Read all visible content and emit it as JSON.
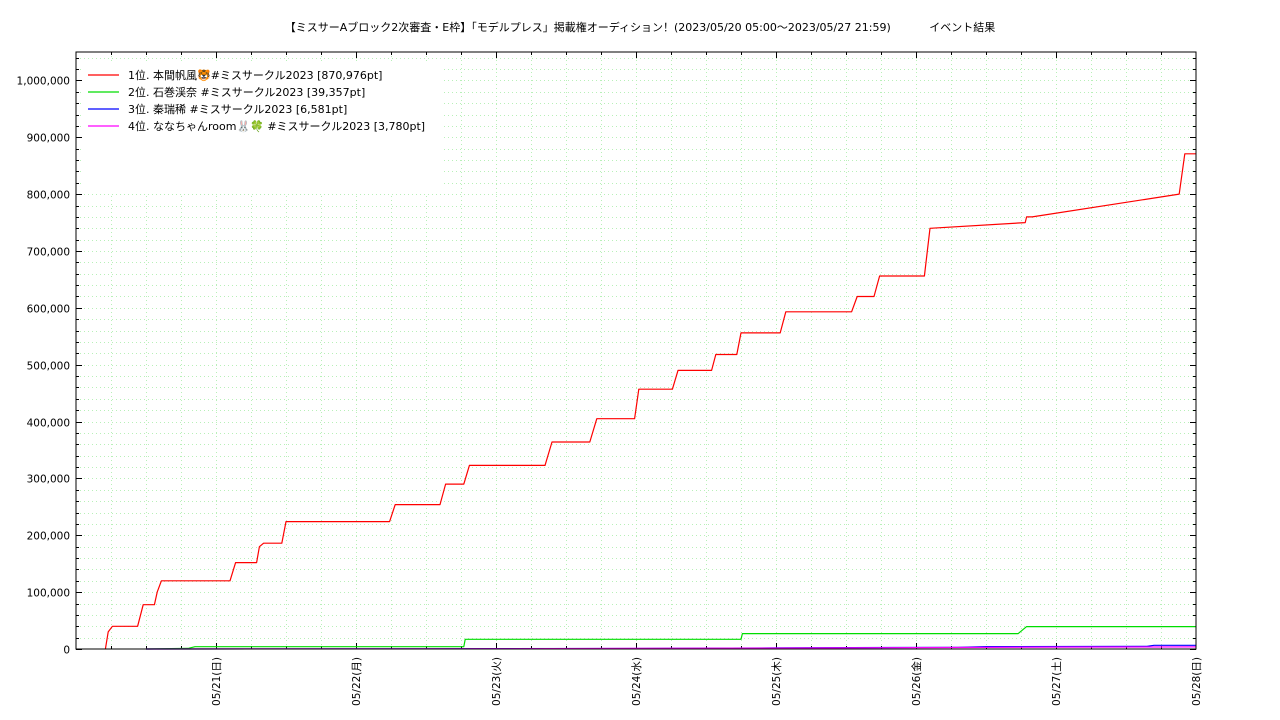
{
  "chart_data": {
    "type": "line",
    "title": "【ミスサーAブロック2次審査・E枠】「モデルプレス」掲載権オーディション！(2023/05/20 05:00〜2023/05/27 21:59)",
    "subtitle": "イベント結果",
    "xlabel": "",
    "ylabel": "",
    "x_unit": "days since 2023/05/20 00:00",
    "xlim": [
      0.0,
      8.0
    ],
    "ylim": [
      0,
      1050000
    ],
    "y_ticks": [
      0,
      100000,
      200000,
      300000,
      400000,
      500000,
      600000,
      700000,
      800000,
      900000,
      1000000
    ],
    "y_tick_labels": [
      "0",
      "100,000",
      "200,000",
      "300,000",
      "400,000",
      "500,000",
      "600,000",
      "700,000",
      "800,000",
      "900,000",
      "1,000,000"
    ],
    "x_ticks": [
      1,
      2,
      3,
      4,
      5,
      6,
      7,
      8
    ],
    "x_tick_labels": [
      "05/21(日)",
      "05/22(月)",
      "05/23(火)",
      "05/24(水)",
      "05/25(木)",
      "05/26(金)",
      "05/27(土)",
      "05/28(日)"
    ],
    "grid": true,
    "legend_position": "top-left",
    "series": [
      {
        "name": "1位. 本間帆風🐯#ミスサークル2023 [870,976pt]",
        "color": "#ff0000",
        "x": [
          0.21,
          0.23,
          0.26,
          0.44,
          0.48,
          0.56,
          0.58,
          0.61,
          1.1,
          1.14,
          1.29,
          1.31,
          1.34,
          1.47,
          1.5,
          2.24,
          2.28,
          2.6,
          2.64,
          2.77,
          2.81,
          3.35,
          3.4,
          3.67,
          3.72,
          3.99,
          4.02,
          4.26,
          4.3,
          4.54,
          4.57,
          4.72,
          4.75,
          5.03,
          5.07,
          5.54,
          5.58,
          5.7,
          5.74,
          6.06,
          6.1,
          6.78,
          6.79,
          6.8,
          6.83,
          7.88,
          7.92,
          7.94,
          8.0
        ],
        "y": [
          0,
          30000,
          40000,
          40000,
          78000,
          78000,
          100000,
          120000,
          120000,
          152000,
          152000,
          180000,
          186000,
          186000,
          224000,
          224000,
          254000,
          254000,
          290000,
          290000,
          323000,
          323000,
          364000,
          364000,
          405000,
          405000,
          457000,
          457000,
          490000,
          490000,
          518000,
          518000,
          556000,
          556000,
          593000,
          593000,
          620000,
          620000,
          656000,
          656000,
          740000,
          750000,
          760000,
          760000,
          760000,
          800000,
          870976,
          870976,
          870976
        ]
      },
      {
        "name": "2位. 石巻渓奈 #ミスサークル2023 [39,357pt]",
        "color": "#00dd00",
        "x": [
          0.5,
          0.8,
          0.85,
          2.77,
          2.78,
          4.75,
          4.76,
          6.73,
          6.79,
          8.0
        ],
        "y": [
          0,
          1000,
          4000,
          4000,
          17000,
          17000,
          27000,
          27000,
          39357,
          39357
        ]
      },
      {
        "name": "3位. 秦瑞稀 #ミスサークル2023 [6,581pt]",
        "color": "#0000ff",
        "x": [
          0.5,
          2.5,
          4.2,
          5.0,
          6.3,
          6.5,
          7.65,
          7.7,
          8.0
        ],
        "y": [
          0,
          300,
          1000,
          2000,
          3000,
          4200,
          4800,
          6581,
          6581
        ]
      },
      {
        "name": "4位. ななちゃんroom🐰🍀 #ミスサークル2023 [3,780pt]",
        "color": "#ff00ff",
        "x": [
          0.5,
          3.0,
          5.0,
          6.0,
          7.0,
          8.0
        ],
        "y": [
          0,
          500,
          1500,
          2500,
          3300,
          3780
        ]
      }
    ]
  }
}
